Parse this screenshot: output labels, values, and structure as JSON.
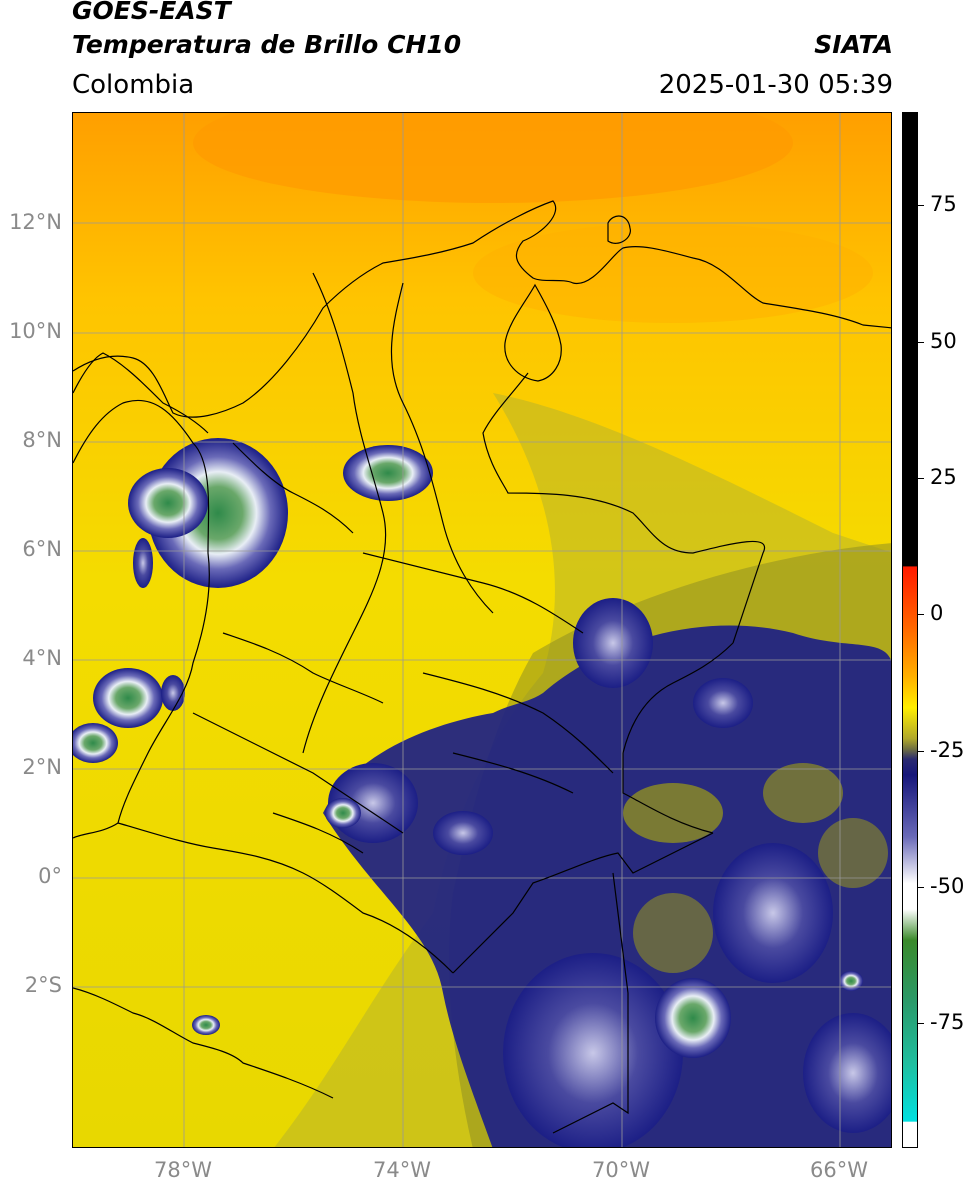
{
  "header": {
    "title_line1": "GOES-EAST",
    "title_line2": "Temperatura de Brillo CH10",
    "subtitle": "Colombia",
    "brand": "SIATA",
    "timestamp": "2025-01-30 05:39"
  },
  "map": {
    "latitude_labels": [
      "12°N",
      "10°N",
      "8°N",
      "6°N",
      "4°N",
      "2°N",
      "0°",
      "2°S"
    ],
    "longitude_labels": [
      "78°W",
      "74°W",
      "70°W",
      "66°W"
    ],
    "background_color": "#f6e000",
    "cold_cloud_color": "#1c1f86"
  },
  "colorbar": {
    "tick_labels": [
      "75",
      "50",
      "25",
      "0",
      "-25",
      "-50",
      "-75"
    ],
    "colors": {
      "black": "#000000",
      "red": "#ff1a00",
      "orange": "#ff9900",
      "yellow": "#ffee00",
      "olive": "#9a9a1a",
      "navy": "#16167a",
      "white": "#ffffff",
      "green": "#3a8a2a",
      "teal": "#1fbfa0",
      "cyan": "#00e0e0"
    }
  }
}
